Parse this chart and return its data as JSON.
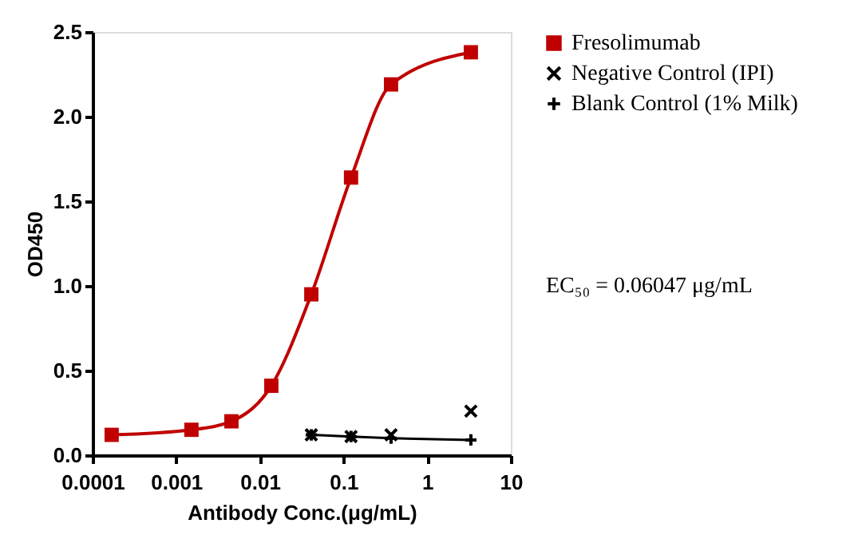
{
  "chart_data": {
    "type": "line",
    "xlabel": "Antibody Conc.(μg/mL)",
    "ylabel": "OD450",
    "log": "x",
    "xlim": [
      0.0001,
      10
    ],
    "xticks": [
      0.0001,
      0.001,
      0.01,
      0.1,
      1,
      10
    ],
    "ylim": [
      0,
      2.5
    ],
    "yticks": [
      {
        "value": 0,
        "label": "0.0"
      },
      {
        "value": 0.5,
        "label": "0.5"
      },
      {
        "value": 1,
        "label": "1.0"
      },
      {
        "value": 1.5,
        "label": "1.5"
      },
      {
        "value": 2,
        "label": "2.0"
      },
      2.5
    ],
    "grid": false,
    "legend": "top right",
    "annotations": [
      "EC₅₀ = 0.06047 μg/mL"
    ],
    "series": [
      {
        "name": "Fresolimumab",
        "marker": "square",
        "color": "#c00000",
        "x": [
          0.000169,
          0.00152,
          0.00457,
          0.0137,
          0.0412,
          0.123,
          0.37,
          3.33
        ],
        "values": [
          0.12,
          0.15,
          0.2,
          0.41,
          0.95,
          1.64,
          2.19,
          2.38
        ]
      },
      {
        "name": "Negative Control (IPI)",
        "type": "scatter",
        "marker": "cross",
        "color": "#000000",
        "x": [
          0.0412,
          0.123,
          0.37,
          3.33
        ],
        "values": [
          0.12,
          0.11,
          0.12,
          0.26
        ]
      },
      {
        "name": "Blank Control (1% Milk)",
        "marker": "cross",
        "color": "#000000",
        "x": [
          0.0412,
          0.123,
          0.37,
          3.33
        ],
        "values": [
          0.12,
          0.11,
          0.1,
          0.09
        ]
      }
    ]
  }
}
